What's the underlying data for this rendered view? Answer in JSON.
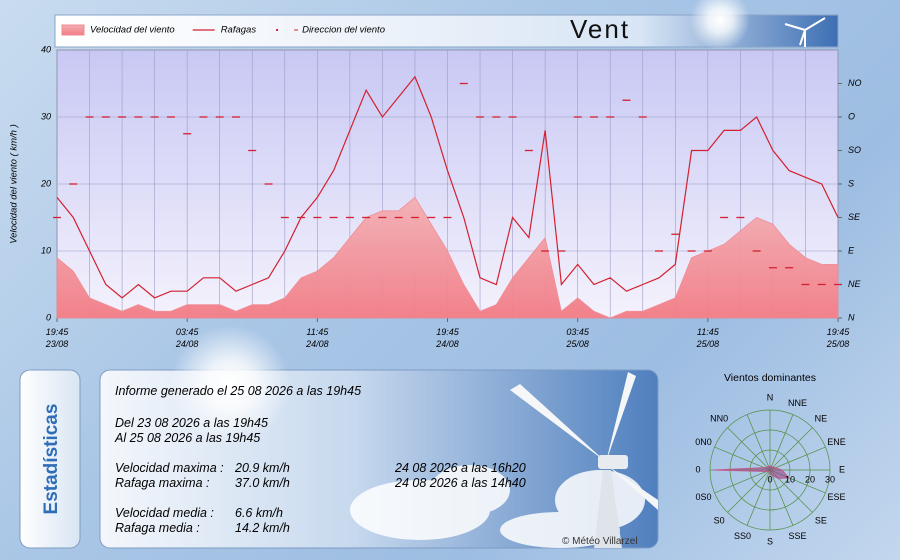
{
  "chart_data": [
    {
      "type": "line",
      "title": "Vent",
      "y_label": "Velocidad del viento ( km/h )",
      "categories": [
        "19:45\n23/08",
        null,
        null,
        null,
        null,
        null,
        null,
        null,
        "03:45\n24/08",
        null,
        null,
        null,
        null,
        null,
        null,
        null,
        "11:45\n24/08",
        null,
        null,
        null,
        null,
        null,
        null,
        null,
        "19:45\n24/08",
        null,
        null,
        null,
        null,
        null,
        null,
        null,
        "03:45\n25/08",
        null,
        null,
        null,
        null,
        null,
        null,
        null,
        "11:45\n25/08",
        null,
        null,
        null,
        null,
        null,
        null,
        null,
        "19:45\n25/08"
      ],
      "series": [
        {
          "name": "Velocidad del viento",
          "style": "area",
          "color": "#f08a94",
          "values": [
            9,
            7,
            3,
            2,
            1,
            2,
            1,
            1,
            2,
            2,
            2,
            1,
            2,
            2,
            3,
            6,
            7,
            9,
            12,
            15,
            16,
            16,
            18,
            14,
            10,
            5,
            1,
            2,
            6,
            9,
            12,
            1,
            3,
            1,
            0,
            1,
            1,
            2,
            3,
            9,
            10,
            11,
            13,
            15,
            14,
            11,
            9,
            8,
            8
          ]
        },
        {
          "name": "Rafagas",
          "style": "line",
          "color": "#d42030",
          "values": [
            18,
            15,
            10,
            5,
            3,
            5,
            3,
            4,
            4,
            6,
            6,
            4,
            5,
            6,
            10,
            15,
            18,
            22,
            28,
            34,
            30,
            33,
            36,
            30,
            22,
            15,
            6,
            5,
            15,
            12,
            28,
            5,
            8,
            5,
            6,
            4,
            5,
            6,
            8,
            25,
            25,
            28,
            28,
            30,
            25,
            22,
            21,
            20,
            15
          ]
        },
        {
          "name": "Direccion del viento",
          "style": "dash",
          "color": "#d42030",
          "axis": "y2",
          "values": [
            3,
            4,
            6,
            6,
            6,
            6,
            6,
            6,
            5.5,
            6,
            6,
            6,
            5,
            4,
            3,
            3,
            3,
            3,
            3,
            3,
            3,
            3,
            3,
            3,
            3,
            7,
            6,
            6,
            6,
            5,
            2,
            2,
            6,
            6,
            6,
            6.5,
            6,
            2,
            2.5,
            2,
            2,
            3,
            3,
            2,
            1.5,
            1.5,
            1,
            1,
            1
          ]
        }
      ],
      "ylim": [
        0,
        40
      ],
      "yticks": [
        0,
        10,
        20,
        30,
        40
      ],
      "y2lim": [
        0,
        8
      ],
      "y2ticks": [
        {
          "value": 0,
          "label": "N"
        },
        {
          "value": 1,
          "label": "NE"
        },
        {
          "value": 2,
          "label": "E"
        },
        {
          "value": 3,
          "label": "SE"
        },
        {
          "value": 4,
          "label": "S"
        },
        {
          "value": 5,
          "label": "SO"
        },
        {
          "value": 6,
          "label": "O"
        },
        {
          "value": 7,
          "label": "NO"
        }
      ],
      "grid": true
    },
    {
      "type": "radar",
      "title": "Vientos dominantes",
      "categories": [
        "N",
        "NNE",
        "NE",
        "ENE",
        "E",
        "ESE",
        "SE",
        "SSE",
        "S",
        "SS0",
        "S0",
        "0S0",
        "0",
        "0N0",
        "NN0",
        ""
      ],
      "values": [
        2,
        2,
        2,
        3,
        6,
        10,
        6,
        3,
        2,
        1,
        1,
        2,
        28,
        3,
        2,
        2
      ],
      "color": "#9a4f8c",
      "rlim": [
        0,
        30
      ],
      "rticks": [
        0,
        10,
        20,
        30
      ],
      "grid": true
    }
  ],
  "stats": {
    "title": "Estadísticas",
    "generated": "Informe generado el 25 08 2026 a las 19h45",
    "from": "Del 23 08 2026 a las 19h45",
    "to": "Al 25 08 2026 a las 19h45",
    "rows": [
      [
        "Velocidad maxima :",
        "20.9 km/h",
        "24 08 2026 a las 16h20"
      ],
      [
        "Rafaga maxima :",
        "37.0 km/h",
        "24 08 2026 a las 14h40"
      ],
      [
        "Velocidad media :",
        "6.6 km/h"
      ],
      [
        "Rafaga media :",
        "14.2 km/h"
      ]
    ],
    "copyright": "© Météo Villarzel"
  }
}
